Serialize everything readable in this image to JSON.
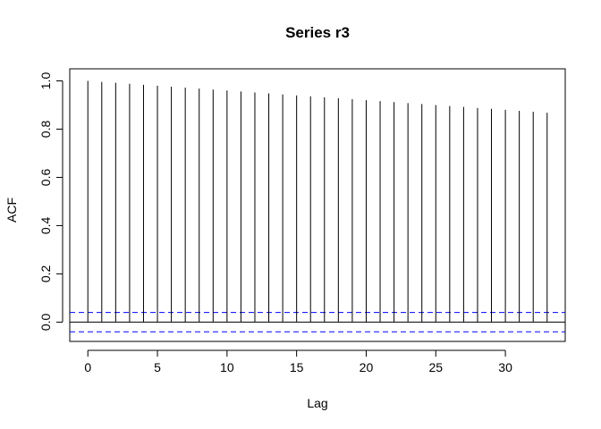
{
  "chart_data": {
    "type": "bar",
    "title": "Series  r3",
    "xlabel": "Lag",
    "ylabel": "ACF",
    "xlim": [
      -1.3,
      34.3
    ],
    "ylim": [
      -0.08,
      1.05
    ],
    "x_ticks": [
      0,
      5,
      10,
      15,
      20,
      25,
      30
    ],
    "x_tick_labels": [
      "0",
      "5",
      "10",
      "15",
      "20",
      "25",
      "30"
    ],
    "y_ticks": [
      0.0,
      0.2,
      0.4,
      0.6,
      0.8,
      1.0
    ],
    "y_tick_labels": [
      "0.0",
      "0.2",
      "0.4",
      "0.6",
      "0.8",
      "1.0"
    ],
    "lags": [
      0,
      1,
      2,
      3,
      4,
      5,
      6,
      7,
      8,
      9,
      10,
      11,
      12,
      13,
      14,
      15,
      16,
      17,
      18,
      19,
      20,
      21,
      22,
      23,
      24,
      25,
      26,
      27,
      28,
      29,
      30,
      31,
      32,
      33
    ],
    "acf": [
      1.0,
      0.996,
      0.992,
      0.988,
      0.984,
      0.98,
      0.976,
      0.972,
      0.968,
      0.964,
      0.96,
      0.956,
      0.952,
      0.948,
      0.944,
      0.94,
      0.936,
      0.932,
      0.928,
      0.924,
      0.92,
      0.916,
      0.912,
      0.908,
      0.904,
      0.9,
      0.896,
      0.892,
      0.888,
      0.884,
      0.88,
      0.876,
      0.872,
      0.868
    ],
    "conf_limit": 0.04,
    "colors": {
      "bars": "#000000",
      "conf_lines": "#0000ff",
      "zero_line": "#000000"
    }
  }
}
